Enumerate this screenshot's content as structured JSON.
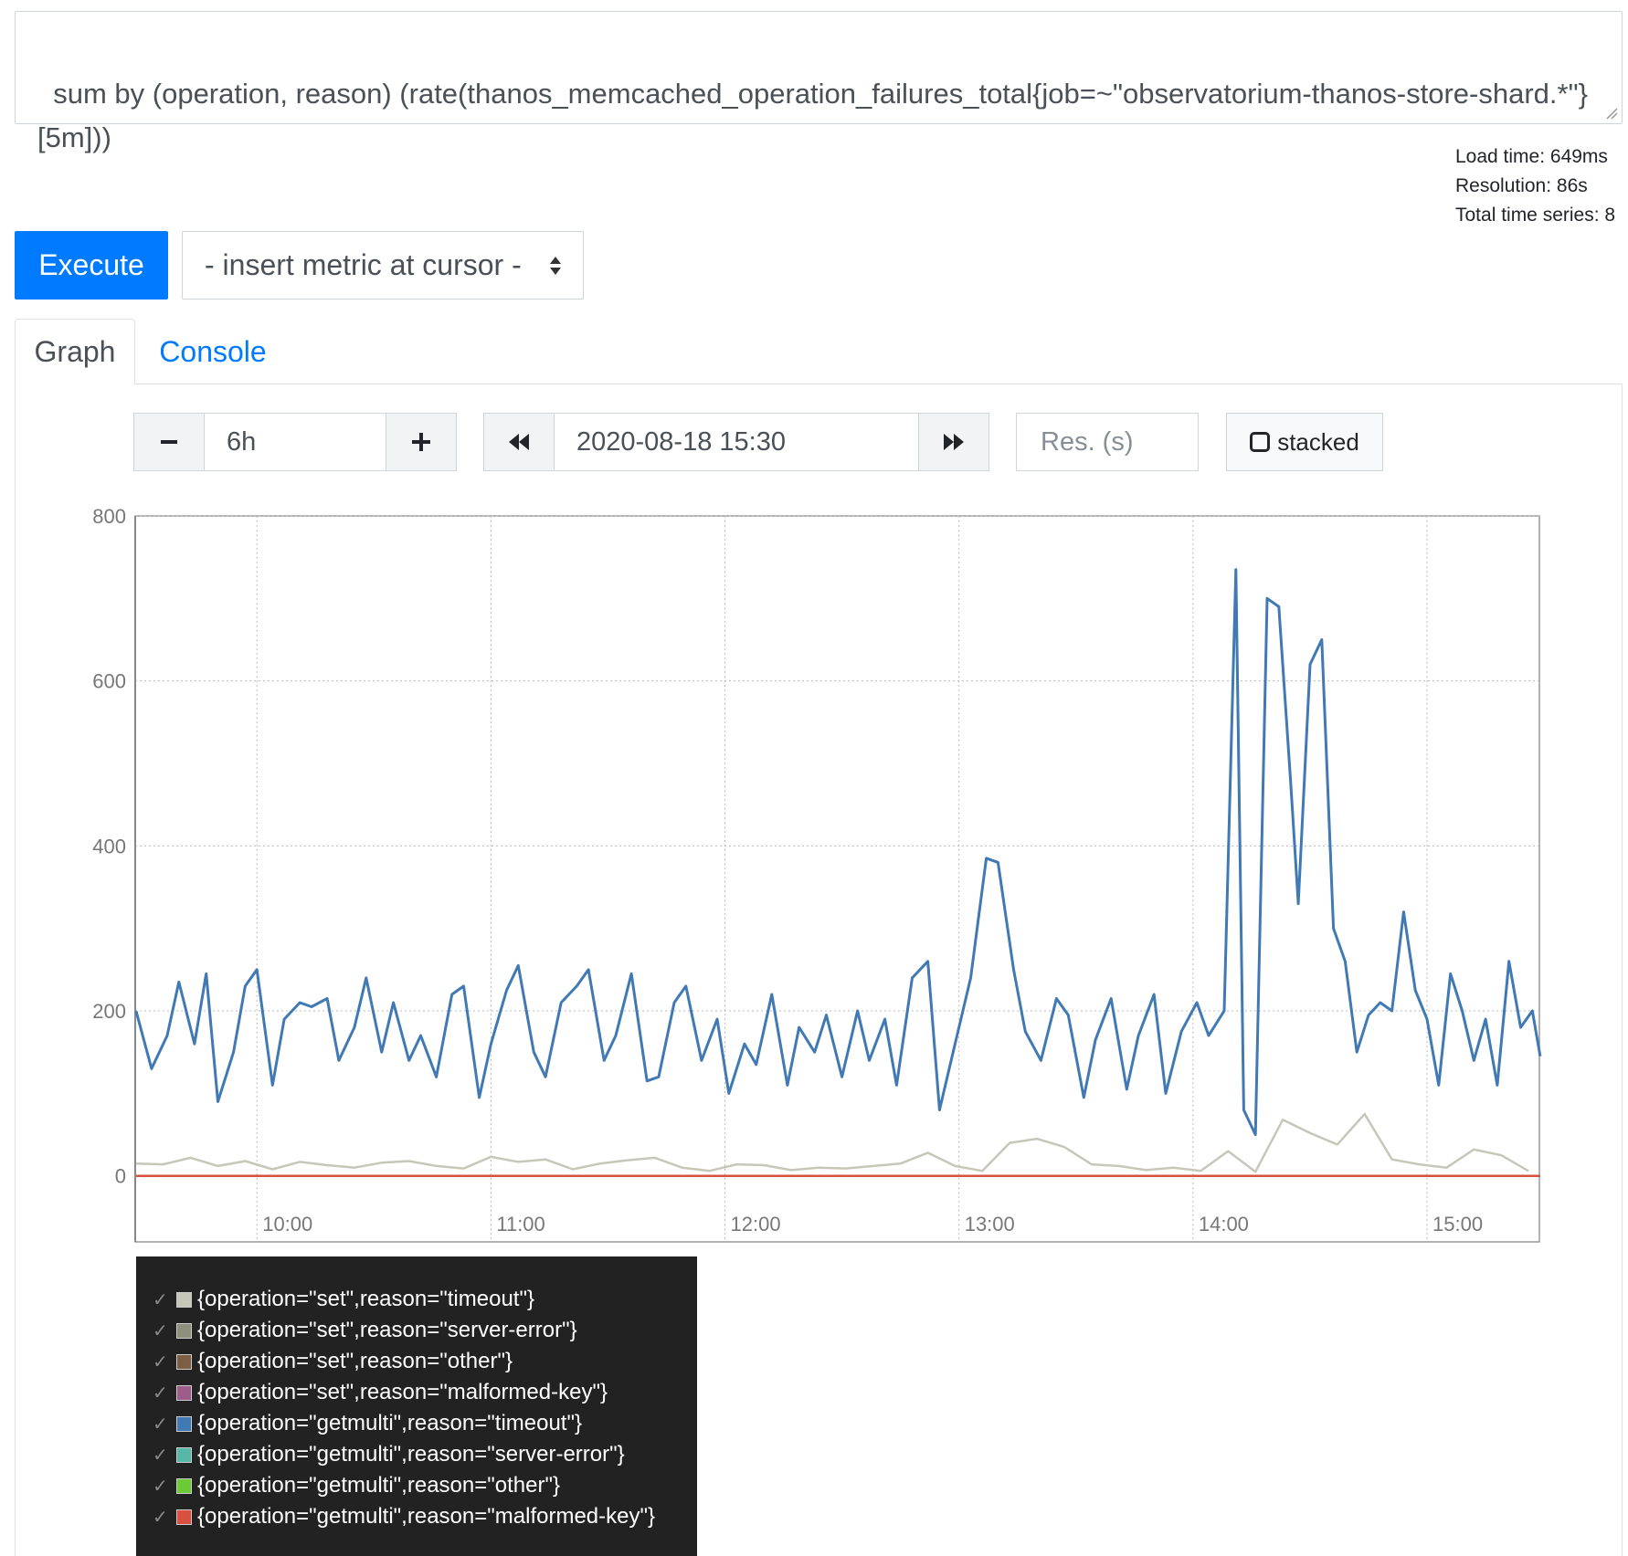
{
  "query": {
    "expression": "sum by (operation, reason) (rate(thanos_memcached_operation_failures_total{job=~\"observatorium-thanos-store-shard.*\"}[5m]))"
  },
  "stats": {
    "load_time": "Load time: 649ms",
    "resolution": "Resolution: 86s",
    "total_series": "Total time series: 8"
  },
  "toolbar": {
    "execute_label": "Execute",
    "insert_metric_label": "- insert metric at cursor -"
  },
  "tabs": [
    {
      "label": "Graph",
      "active": true
    },
    {
      "label": "Console",
      "active": false
    }
  ],
  "graph_controls": {
    "range_value": "6h",
    "end_time_value": "2020-08-18 15:30",
    "resolution_placeholder": "Res. (s)",
    "stacked_label": "stacked",
    "stacked_checked": false
  },
  "icons": {
    "minus": "minus-icon",
    "plus": "plus-icon",
    "back": "backward-icon",
    "forward": "forward-icon",
    "select_caret": "sort-caret-icon"
  },
  "colors": {
    "accent": "#007bff",
    "legend_bg": "#222222"
  },
  "chart_data": {
    "type": "line",
    "ylim": [
      -80,
      800
    ],
    "xlim_hours": [
      9.48,
      15.48
    ],
    "yticks": [
      0,
      200,
      400,
      600,
      800
    ],
    "ytick_labels": [
      "0",
      "200",
      "400",
      "600",
      "800"
    ],
    "xticks": [
      "10:00",
      "11:00",
      "12:00",
      "13:00",
      "14:00",
      "15:00"
    ],
    "grid": true,
    "legend_position": "below",
    "series": [
      {
        "name": "{operation=\"set\",reason=\"timeout\"}",
        "color": "#c7c7b9",
        "x": [
          "09:29",
          "09:36",
          "09:43",
          "09:50",
          "09:57",
          "10:04",
          "10:11",
          "10:18",
          "10:25",
          "10:32",
          "10:39",
          "10:46",
          "10:53",
          "11:00",
          "11:07",
          "11:14",
          "11:21",
          "11:28",
          "11:35",
          "11:42",
          "11:49",
          "11:56",
          "12:03",
          "12:10",
          "12:17",
          "12:24",
          "12:31",
          "12:38",
          "12:45",
          "12:52",
          "12:59",
          "13:06",
          "13:13",
          "13:20",
          "13:27",
          "13:34",
          "13:41",
          "13:48",
          "13:55",
          "14:02",
          "14:09",
          "14:16",
          "14:23",
          "14:30",
          "14:37",
          "14:44",
          "14:51",
          "14:58",
          "15:05",
          "15:12",
          "15:19",
          "15:26"
        ],
        "y": [
          15,
          14,
          22,
          12,
          18,
          8,
          17,
          13,
          10,
          16,
          18,
          12,
          9,
          23,
          17,
          20,
          8,
          15,
          19,
          22,
          10,
          6,
          14,
          13,
          7,
          10,
          9,
          12,
          15,
          28,
          12,
          6,
          40,
          45,
          35,
          14,
          12,
          7,
          10,
          6,
          30,
          5,
          68,
          52,
          38,
          75,
          20,
          14,
          10,
          32,
          25,
          6
        ]
      },
      {
        "name": "{operation=\"set\",reason=\"server-error\"}",
        "color": "#8f8f7e",
        "x": [
          "09:29",
          "15:29"
        ],
        "y": [
          0,
          0
        ]
      },
      {
        "name": "{operation=\"set\",reason=\"other\"}",
        "color": "#7b5e43",
        "x": [
          "09:29",
          "15:29"
        ],
        "y": [
          0,
          0
        ]
      },
      {
        "name": "{operation=\"set\",reason=\"malformed-key\"}",
        "color": "#9c5d8a",
        "x": [
          "09:29",
          "15:29"
        ],
        "y": [
          0,
          0
        ]
      },
      {
        "name": "{operation=\"getmulti\",reason=\"timeout\"}",
        "color": "#4079b3",
        "x": [
          "09:29",
          "09:33",
          "09:37",
          "09:40",
          "09:44",
          "09:47",
          "09:50",
          "09:54",
          "09:57",
          "10:00",
          "10:04",
          "10:07",
          "10:11",
          "10:14",
          "10:18",
          "10:21",
          "10:25",
          "10:28",
          "10:32",
          "10:35",
          "10:39",
          "10:42",
          "10:46",
          "10:50",
          "10:53",
          "10:57",
          "11:00",
          "11:04",
          "11:07",
          "11:11",
          "11:14",
          "11:18",
          "11:22",
          "11:25",
          "11:29",
          "11:32",
          "11:36",
          "11:40",
          "11:43",
          "11:47",
          "11:50",
          "11:54",
          "11:58",
          "12:01",
          "12:05",
          "12:08",
          "12:12",
          "12:16",
          "12:19",
          "12:23",
          "12:26",
          "12:30",
          "12:34",
          "12:37",
          "12:41",
          "12:44",
          "12:48",
          "12:52",
          "12:55",
          "12:59",
          "13:03",
          "13:07",
          "13:10",
          "13:14",
          "13:17",
          "13:21",
          "13:25",
          "13:28",
          "13:32",
          "13:35",
          "13:39",
          "13:43",
          "13:46",
          "13:50",
          "13:53",
          "13:57",
          "14:01",
          "14:04",
          "14:08",
          "14:11",
          "14:13",
          "14:16",
          "14:19",
          "14:22",
          "14:25",
          "14:27",
          "14:30",
          "14:33",
          "14:36",
          "14:39",
          "14:42",
          "14:45",
          "14:48",
          "14:51",
          "14:54",
          "14:57",
          "15:00",
          "15:03",
          "15:06",
          "15:09",
          "15:12",
          "15:15",
          "15:18",
          "15:21",
          "15:24",
          "15:27",
          "15:29"
        ],
        "y": [
          200,
          130,
          170,
          235,
          160,
          245,
          90,
          150,
          230,
          250,
          110,
          190,
          210,
          205,
          215,
          140,
          180,
          240,
          150,
          210,
          140,
          170,
          120,
          220,
          230,
          95,
          160,
          225,
          255,
          150,
          120,
          210,
          230,
          250,
          140,
          170,
          245,
          115,
          120,
          210,
          230,
          140,
          190,
          100,
          160,
          135,
          220,
          110,
          180,
          150,
          195,
          120,
          200,
          140,
          190,
          110,
          240,
          260,
          80,
          160,
          240,
          385,
          380,
          250,
          175,
          140,
          215,
          195,
          95,
          165,
          215,
          105,
          170,
          220,
          100,
          175,
          210,
          170,
          200,
          735,
          80,
          50,
          700,
          690,
          480,
          330,
          620,
          650,
          300,
          260,
          150,
          195,
          210,
          200,
          320,
          225,
          190,
          110,
          245,
          200,
          140,
          190,
          110,
          260,
          180,
          200,
          145
        ]
      },
      {
        "name": "{operation=\"getmulti\",reason=\"server-error\"}",
        "color": "#57b8a8",
        "x": [
          "09:29",
          "15:29"
        ],
        "y": [
          0,
          0
        ]
      },
      {
        "name": "{operation=\"getmulti\",reason=\"other\"}",
        "color": "#6acb36",
        "x": [
          "09:29",
          "15:29"
        ],
        "y": [
          0,
          0
        ]
      },
      {
        "name": "{operation=\"getmulti\",reason=\"malformed-key\"}",
        "color": "#d9503f",
        "x": [
          "09:29",
          "15:29"
        ],
        "y": [
          0,
          0
        ]
      }
    ]
  }
}
